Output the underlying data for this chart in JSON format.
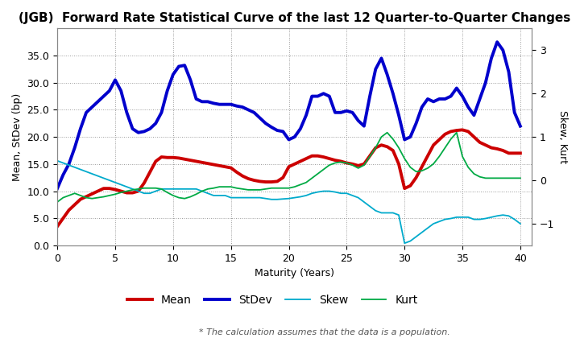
{
  "title": "(JGB)  Forward Rate Statistical Curve of the last 12 Quarter-to-Quarter Changes",
  "xlabel": "Maturity (Years)",
  "ylabel_left": "Mean, StDev (bp)",
  "ylabel_right": "Skew, Kurt",
  "footnote": "* The calculation assumes that the data is a population.",
  "xlim": [
    0,
    41
  ],
  "ylim_left": [
    0.0,
    40.0
  ],
  "ylim_right": [
    -1.5,
    3.5
  ],
  "xticks": [
    0,
    5,
    10,
    15,
    20,
    25,
    30,
    35,
    40
  ],
  "yticks_left": [
    0.0,
    5.0,
    10.0,
    15.0,
    20.0,
    25.0,
    30.0,
    35.0
  ],
  "yticks_right": [
    -1,
    0,
    1,
    2,
    3
  ],
  "mean_x": [
    0,
    0.5,
    1,
    1.5,
    2,
    2.5,
    3,
    3.5,
    4,
    4.5,
    5,
    5.5,
    6,
    6.5,
    7,
    7.5,
    8,
    8.5,
    9,
    9.5,
    10,
    10.5,
    11,
    11.5,
    12,
    12.5,
    13,
    13.5,
    14,
    14.5,
    15,
    15.5,
    16,
    16.5,
    17,
    17.5,
    18,
    18.5,
    19,
    19.5,
    20,
    20.5,
    21,
    21.5,
    22,
    22.5,
    23,
    23.5,
    24,
    24.5,
    25,
    25.5,
    26,
    26.5,
    27,
    27.5,
    28,
    28.5,
    29,
    29.5,
    30,
    30.5,
    31,
    31.5,
    32,
    32.5,
    33,
    33.5,
    34,
    34.5,
    35,
    35.5,
    36,
    36.5,
    37,
    37.5,
    38,
    38.5,
    39,
    39.5,
    40
  ],
  "mean_y": [
    3.5,
    5.0,
    6.5,
    7.5,
    8.5,
    9.0,
    9.5,
    10.0,
    10.5,
    10.5,
    10.3,
    10.0,
    9.7,
    9.7,
    10.0,
    11.5,
    13.5,
    15.5,
    16.3,
    16.2,
    16.2,
    16.1,
    15.9,
    15.7,
    15.5,
    15.3,
    15.1,
    14.9,
    14.7,
    14.5,
    14.3,
    13.5,
    12.8,
    12.3,
    12.0,
    11.8,
    11.7,
    11.7,
    11.8,
    12.5,
    14.5,
    15.0,
    15.5,
    16.0,
    16.5,
    16.5,
    16.3,
    16.0,
    15.7,
    15.5,
    15.2,
    15.0,
    14.7,
    15.0,
    16.5,
    18.0,
    18.5,
    18.2,
    17.5,
    15.0,
    10.5,
    11.0,
    12.5,
    14.5,
    16.5,
    18.5,
    19.5,
    20.5,
    21.0,
    21.2,
    21.3,
    21.0,
    20.0,
    19.0,
    18.5,
    18.0,
    17.8,
    17.5,
    17.0,
    17.0,
    17.0
  ],
  "stdev_x": [
    0,
    0.5,
    1,
    1.5,
    2,
    2.5,
    3,
    3.5,
    4,
    4.5,
    5,
    5.5,
    6,
    6.5,
    7,
    7.5,
    8,
    8.5,
    9,
    9.5,
    10,
    10.5,
    11,
    11.5,
    12,
    12.5,
    13,
    13.5,
    14,
    14.5,
    15,
    15.5,
    16,
    16.5,
    17,
    17.5,
    18,
    18.5,
    19,
    19.5,
    20,
    20.5,
    21,
    21.5,
    22,
    22.5,
    23,
    23.5,
    24,
    24.5,
    25,
    25.5,
    26,
    26.5,
    27,
    27.5,
    28,
    28.5,
    29,
    29.5,
    30,
    30.5,
    31,
    31.5,
    32,
    32.5,
    33,
    33.5,
    34,
    34.5,
    35,
    35.5,
    36,
    36.5,
    37,
    37.5,
    38,
    38.5,
    39,
    39.5,
    40
  ],
  "stdev_y": [
    10.5,
    13.0,
    15.0,
    18.0,
    21.5,
    24.5,
    25.5,
    26.5,
    27.5,
    28.5,
    30.5,
    28.5,
    24.5,
    21.5,
    20.8,
    21.0,
    21.5,
    22.5,
    24.5,
    28.5,
    31.5,
    33.0,
    33.2,
    30.5,
    27.0,
    26.5,
    26.5,
    26.2,
    26.0,
    26.0,
    26.0,
    25.7,
    25.5,
    25.0,
    24.5,
    23.5,
    22.5,
    21.8,
    21.2,
    21.0,
    19.5,
    20.0,
    21.5,
    24.0,
    27.5,
    27.5,
    28.0,
    27.5,
    24.5,
    24.5,
    24.8,
    24.5,
    23.0,
    22.0,
    27.5,
    32.5,
    34.5,
    31.5,
    28.0,
    24.0,
    19.5,
    20.0,
    22.5,
    25.5,
    27.0,
    26.5,
    27.0,
    27.0,
    27.5,
    29.0,
    27.5,
    25.5,
    24.0,
    27.0,
    30.0,
    34.5,
    37.5,
    36.0,
    32.0,
    24.5,
    22.0
  ],
  "skew_x": [
    0,
    0.5,
    1,
    1.5,
    2,
    2.5,
    3,
    3.5,
    4,
    4.5,
    5,
    5.5,
    6,
    6.5,
    7,
    7.5,
    8,
    8.5,
    9,
    9.5,
    10,
    10.5,
    11,
    11.5,
    12,
    12.5,
    13,
    13.5,
    14,
    14.5,
    15,
    15.5,
    16,
    16.5,
    17,
    17.5,
    18,
    18.5,
    19,
    19.5,
    20,
    20.5,
    21,
    21.5,
    22,
    22.5,
    23,
    23.5,
    24,
    24.5,
    25,
    25.5,
    26,
    26.5,
    27,
    27.5,
    28,
    28.5,
    29,
    29.5,
    30,
    30.5,
    31,
    31.5,
    32,
    32.5,
    33,
    33.5,
    34,
    34.5,
    35,
    35.5,
    36,
    36.5,
    37,
    37.5,
    38,
    38.5,
    39,
    39.5,
    40
  ],
  "skew_y": [
    0.45,
    0.4,
    0.35,
    0.3,
    0.25,
    0.2,
    0.15,
    0.1,
    0.05,
    0.0,
    -0.05,
    -0.1,
    -0.15,
    -0.2,
    -0.25,
    -0.3,
    -0.3,
    -0.25,
    -0.2,
    -0.2,
    -0.2,
    -0.2,
    -0.2,
    -0.2,
    -0.2,
    -0.25,
    -0.3,
    -0.35,
    -0.35,
    -0.35,
    -0.4,
    -0.4,
    -0.4,
    -0.4,
    -0.4,
    -0.4,
    -0.42,
    -0.44,
    -0.44,
    -0.43,
    -0.42,
    -0.4,
    -0.38,
    -0.35,
    -0.3,
    -0.27,
    -0.25,
    -0.25,
    -0.27,
    -0.3,
    -0.3,
    -0.35,
    -0.4,
    -0.5,
    -0.6,
    -0.7,
    -0.75,
    -0.75,
    -0.75,
    -0.8,
    -1.45,
    -1.4,
    -1.3,
    -1.2,
    -1.1,
    -1.0,
    -0.95,
    -0.9,
    -0.88,
    -0.85,
    -0.85,
    -0.85,
    -0.9,
    -0.9,
    -0.88,
    -0.85,
    -0.82,
    -0.8,
    -0.82,
    -0.9,
    -1.0
  ],
  "kurt_x": [
    0,
    0.5,
    1,
    1.5,
    2,
    2.5,
    3,
    3.5,
    4,
    4.5,
    5,
    5.5,
    6,
    6.5,
    7,
    7.5,
    8,
    8.5,
    9,
    9.5,
    10,
    10.5,
    11,
    11.5,
    12,
    12.5,
    13,
    13.5,
    14,
    14.5,
    15,
    15.5,
    16,
    16.5,
    17,
    17.5,
    18,
    18.5,
    19,
    19.5,
    20,
    20.5,
    21,
    21.5,
    22,
    22.5,
    23,
    23.5,
    24,
    24.5,
    25,
    25.5,
    26,
    26.5,
    27,
    27.5,
    28,
    28.5,
    29,
    29.5,
    30,
    30.5,
    31,
    31.5,
    32,
    32.5,
    33,
    33.5,
    34,
    34.5,
    35,
    35.5,
    36,
    36.5,
    37,
    37.5,
    38,
    38.5,
    39,
    39.5,
    40
  ],
  "kurt_y": [
    -0.5,
    -0.4,
    -0.35,
    -0.3,
    -0.35,
    -0.4,
    -0.42,
    -0.4,
    -0.38,
    -0.35,
    -0.32,
    -0.28,
    -0.25,
    -0.22,
    -0.2,
    -0.18,
    -0.18,
    -0.18,
    -0.2,
    -0.28,
    -0.35,
    -0.4,
    -0.42,
    -0.38,
    -0.32,
    -0.25,
    -0.2,
    -0.18,
    -0.15,
    -0.15,
    -0.15,
    -0.18,
    -0.2,
    -0.22,
    -0.22,
    -0.22,
    -0.2,
    -0.18,
    -0.18,
    -0.18,
    -0.18,
    -0.15,
    -0.1,
    -0.05,
    0.05,
    0.15,
    0.25,
    0.35,
    0.4,
    0.42,
    0.4,
    0.35,
    0.28,
    0.35,
    0.55,
    0.75,
    1.0,
    1.1,
    0.95,
    0.75,
    0.5,
    0.3,
    0.2,
    0.22,
    0.28,
    0.38,
    0.55,
    0.75,
    0.95,
    1.1,
    0.55,
    0.3,
    0.15,
    0.08,
    0.05,
    0.05,
    0.05,
    0.05,
    0.05,
    0.05,
    0.05
  ],
  "mean_color": "#cc0000",
  "stdev_color": "#0000cc",
  "skew_color": "#00aacc",
  "kurt_color": "#00aa44",
  "mean_lw": 2.8,
  "stdev_lw": 2.8,
  "skew_lw": 1.3,
  "kurt_lw": 1.3,
  "background_color": "#ffffff",
  "grid_color": "#999999",
  "title_fontsize": 11,
  "label_fontsize": 9,
  "legend_fontsize": 10,
  "tick_fontsize": 9
}
